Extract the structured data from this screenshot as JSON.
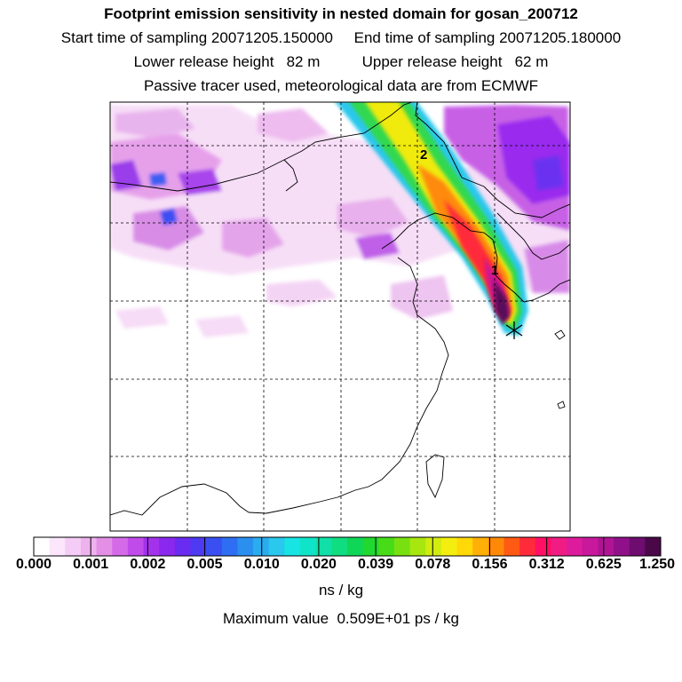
{
  "header": {
    "title": "Footprint emission sensitivity in nested domain for gosan_200712",
    "sampling": "Start time of sampling 20071205.150000     End time of sampling 20071205.180000",
    "release": "Lower release height   82 m          Upper release height   62 m",
    "tracer": "Passive tracer used, meteorological data are from ECMWF"
  },
  "map": {
    "markers": [
      {
        "label": "2"
      },
      {
        "label": "1"
      }
    ],
    "receptor": {
      "symbol": "star-cross"
    }
  },
  "colorbar": {
    "colors": [
      "#ffffff",
      "#fbe6fb",
      "#f5ccf5",
      "#eeb2ee",
      "#e38fe6",
      "#d46ae8",
      "#c04aea",
      "#a432ec",
      "#8a28ee",
      "#6a2cf0",
      "#4d3af2",
      "#3a4ff2",
      "#2e6ef2",
      "#2b8ff0",
      "#2aadee",
      "#2ac8ec",
      "#18e4e4",
      "#10e4c8",
      "#10e0a8",
      "#10dc80",
      "#10d658",
      "#20d830",
      "#48dc18",
      "#78e010",
      "#a8e610",
      "#d2ec10",
      "#f4ee10",
      "#ffd808",
      "#ffb008",
      "#ff8808",
      "#ff5a14",
      "#ff2a3a",
      "#ff1064",
      "#f01c84",
      "#dc1c9c",
      "#c8189c",
      "#b01494",
      "#90108a",
      "#6e0c70",
      "#4a0848"
    ],
    "tick_labels": [
      "0.000",
      "0.001",
      "0.002",
      "0.005",
      "0.010",
      "0.020",
      "0.039",
      "0.078",
      "0.156",
      "0.312",
      "0.625",
      "1.250"
    ],
    "units": "ns / kg"
  },
  "footer": {
    "max_value": "Maximum value  0.509E+01 ps / kg"
  }
}
